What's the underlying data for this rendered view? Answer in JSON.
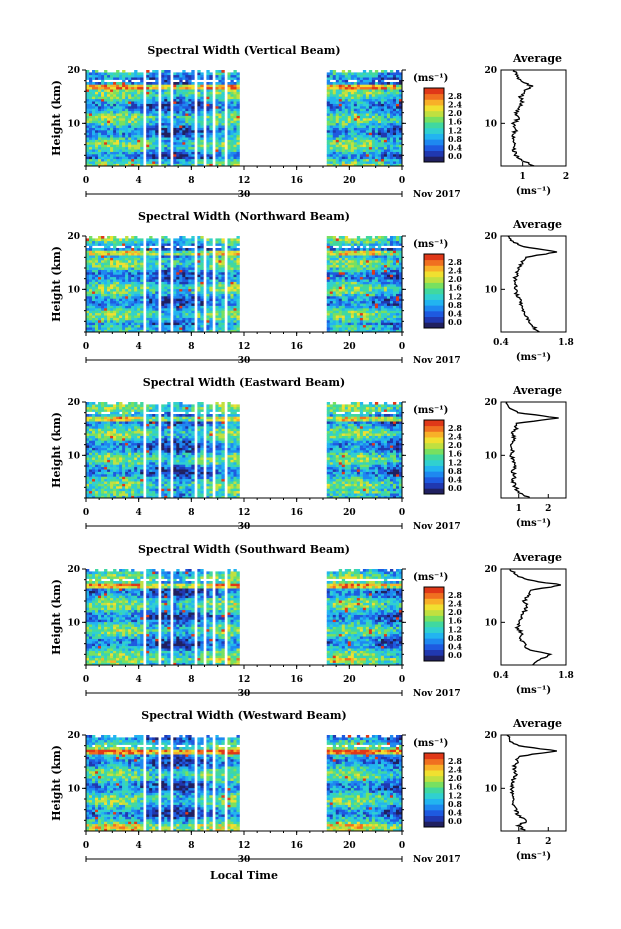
{
  "figure": {
    "xlabel": "Local Time",
    "date_label": "Nov 2017",
    "day_label": "30",
    "unit_label": "(ms⁻¹)",
    "panel_ylabel": "Height (km)",
    "avg_title": "Average",
    "avg_xlabel": "(ms⁻¹)",
    "colormap": [
      "#202060",
      "#2038b0",
      "#1e5ae0",
      "#1e88f0",
      "#22b4f0",
      "#30d0d0",
      "#40d8a0",
      "#78e060",
      "#c0e040",
      "#f0e030",
      "#f8b028",
      "#f07020",
      "#e03818"
    ]
  },
  "chart_data": [
    {
      "type": "heatmap",
      "title": "Spectral Width (Vertical Beam)",
      "xlim": [
        0,
        24
      ],
      "ylim": [
        2,
        20
      ],
      "xticks": [
        "0",
        "4",
        "8",
        "12",
        "16",
        "20",
        "0"
      ],
      "yticks": [
        "10",
        "20"
      ],
      "colorbar_ticks": [
        "0.0",
        "0.4",
        "0.8",
        "1.2",
        "1.6",
        "2.0",
        "2.4",
        "2.8"
      ],
      "data_gaps_local_time": [
        [
          4.3,
          4.6
        ],
        [
          5.6,
          5.8
        ],
        [
          6.5,
          6.7
        ],
        [
          8.2,
          8.4
        ],
        [
          8.9,
          9.1
        ],
        [
          9.7,
          9.9
        ],
        [
          10.6,
          10.8
        ],
        [
          11.6,
          11.8
        ],
        [
          12.0,
          15.9
        ],
        [
          16.1,
          18.3
        ]
      ],
      "average_profile": {
        "xlim": [
          0.5,
          2.0
        ],
        "xticks": [
          "1",
          "2"
        ],
        "yticks": [
          "10",
          "20"
        ],
        "height_km": [
          2,
          3,
          4,
          5,
          6,
          7,
          8,
          9,
          10,
          11,
          12,
          13,
          14,
          15,
          16,
          17,
          18,
          19,
          20
        ],
        "width": [
          1.25,
          1.0,
          0.85,
          0.8,
          0.85,
          0.75,
          0.8,
          0.85,
          0.8,
          0.9,
          0.85,
          0.95,
          1.0,
          0.95,
          1.05,
          1.2,
          0.95,
          0.85,
          0.8
        ]
      }
    },
    {
      "type": "heatmap",
      "title": "Spectral Width (Northward Beam)",
      "xlim": [
        0,
        24
      ],
      "ylim": [
        2,
        20
      ],
      "xticks": [
        "0",
        "4",
        "8",
        "12",
        "16",
        "20",
        "0"
      ],
      "yticks": [
        "10",
        "20"
      ],
      "colorbar_ticks": [
        "0.0",
        "0.4",
        "0.8",
        "1.2",
        "1.6",
        "2.0",
        "2.4",
        "2.8"
      ],
      "data_gaps_local_time": [
        [
          4.3,
          4.6
        ],
        [
          5.6,
          5.8
        ],
        [
          6.5,
          6.7
        ],
        [
          8.2,
          8.4
        ],
        [
          8.9,
          9.1
        ],
        [
          9.7,
          9.9
        ],
        [
          10.6,
          10.8
        ],
        [
          11.6,
          11.8
        ],
        [
          12.0,
          15.9
        ],
        [
          16.1,
          18.3
        ]
      ],
      "average_profile": {
        "xlim": [
          0.4,
          1.8
        ],
        "xticks": [
          "0.4",
          "1.8"
        ],
        "yticks": [
          "10",
          "20"
        ],
        "height_km": [
          2,
          3,
          4,
          5,
          6,
          7,
          8,
          9,
          10,
          11,
          12,
          13,
          14,
          15,
          16,
          17,
          18,
          19,
          20
        ],
        "width": [
          1.2,
          1.1,
          1.0,
          0.95,
          0.9,
          0.85,
          0.8,
          0.75,
          0.7,
          0.72,
          0.7,
          0.75,
          0.8,
          0.85,
          0.95,
          1.6,
          0.9,
          0.65,
          0.55
        ]
      }
    },
    {
      "type": "heatmap",
      "title": "Spectral Width (Eastward Beam)",
      "xlim": [
        0,
        24
      ],
      "ylim": [
        2,
        20
      ],
      "xticks": [
        "0",
        "4",
        "8",
        "12",
        "16",
        "20",
        "0"
      ],
      "yticks": [
        "10",
        "20"
      ],
      "colorbar_ticks": [
        "0.0",
        "0.4",
        "0.8",
        "1.2",
        "1.6",
        "2.0",
        "2.4",
        "2.8"
      ],
      "data_gaps_local_time": [
        [
          4.3,
          4.6
        ],
        [
          5.6,
          5.8
        ],
        [
          6.5,
          6.7
        ],
        [
          8.2,
          8.4
        ],
        [
          8.9,
          9.1
        ],
        [
          9.7,
          9.9
        ],
        [
          10.6,
          10.8
        ],
        [
          11.6,
          11.8
        ],
        [
          12.0,
          15.9
        ],
        [
          16.1,
          18.3
        ]
      ],
      "average_profile": {
        "xlim": [
          0.4,
          2.6
        ],
        "xticks": [
          "1",
          "2"
        ],
        "yticks": [
          "10",
          "20"
        ],
        "height_km": [
          2,
          3,
          4,
          5,
          6,
          7,
          8,
          9,
          10,
          11,
          12,
          13,
          14,
          15,
          16,
          17,
          18,
          19,
          20
        ],
        "width": [
          1.4,
          1.0,
          0.9,
          0.8,
          0.85,
          0.8,
          0.9,
          0.8,
          0.75,
          0.8,
          0.78,
          0.85,
          0.8,
          0.9,
          0.95,
          2.3,
          1.0,
          0.65,
          0.6
        ]
      }
    },
    {
      "type": "heatmap",
      "title": "Spectral Width (Southward Beam)",
      "xlim": [
        0,
        24
      ],
      "ylim": [
        2,
        20
      ],
      "xticks": [
        "0",
        "4",
        "8",
        "12",
        "16",
        "20",
        "0"
      ],
      "yticks": [
        "10",
        "20"
      ],
      "colorbar_ticks": [
        "0.0",
        "0.4",
        "0.8",
        "1.2",
        "1.6",
        "2.0",
        "2.4",
        "2.8"
      ],
      "data_gaps_local_time": [
        [
          4.3,
          4.6
        ],
        [
          5.6,
          5.8
        ],
        [
          6.5,
          6.7
        ],
        [
          8.2,
          8.4
        ],
        [
          8.9,
          9.1
        ],
        [
          9.7,
          9.9
        ],
        [
          10.6,
          10.8
        ],
        [
          11.6,
          11.8
        ],
        [
          12.0,
          15.9
        ],
        [
          16.1,
          18.3
        ]
      ],
      "average_profile": {
        "xlim": [
          0.4,
          1.8
        ],
        "xticks": [
          "0.4",
          "1.8"
        ],
        "yticks": [
          "10",
          "20"
        ],
        "height_km": [
          2,
          3,
          4,
          5,
          6,
          7,
          8,
          9,
          10,
          11,
          12,
          13,
          14,
          15,
          16,
          17,
          18,
          19,
          20
        ],
        "width": [
          1.1,
          1.2,
          1.5,
          0.95,
          0.9,
          0.8,
          0.85,
          0.75,
          0.8,
          0.85,
          0.9,
          0.95,
          0.9,
          1.0,
          1.05,
          1.7,
          0.95,
          0.7,
          0.6
        ]
      }
    },
    {
      "type": "heatmap",
      "title": "Spectral Width (Westward Beam)",
      "xlim": [
        0,
        24
      ],
      "ylim": [
        2,
        20
      ],
      "xticks": [
        "0",
        "4",
        "8",
        "12",
        "16",
        "20",
        "0"
      ],
      "yticks": [
        "10",
        "20"
      ],
      "colorbar_ticks": [
        "0.0",
        "0.4",
        "0.8",
        "1.2",
        "1.6",
        "2.0",
        "2.4",
        "2.8"
      ],
      "data_gaps_local_time": [
        [
          4.3,
          4.6
        ],
        [
          5.6,
          5.8
        ],
        [
          6.5,
          6.7
        ],
        [
          8.2,
          8.4
        ],
        [
          8.9,
          9.1
        ],
        [
          9.7,
          9.9
        ],
        [
          10.6,
          10.8
        ],
        [
          11.6,
          11.8
        ],
        [
          12.0,
          15.9
        ],
        [
          16.1,
          18.3
        ]
      ],
      "average_profile": {
        "xlim": [
          0.4,
          2.6
        ],
        "xticks": [
          "1",
          "2"
        ],
        "yticks": [
          "10",
          "20"
        ],
        "height_km": [
          2,
          3,
          4,
          5,
          6,
          7,
          8,
          9,
          10,
          11,
          12,
          13,
          14,
          15,
          16,
          17,
          18,
          19,
          20
        ],
        "width": [
          1.2,
          1.0,
          1.3,
          0.95,
          0.9,
          0.8,
          0.85,
          0.8,
          0.78,
          0.8,
          0.85,
          0.9,
          0.85,
          0.95,
          1.0,
          2.3,
          0.95,
          0.7,
          0.6
        ]
      }
    }
  ]
}
